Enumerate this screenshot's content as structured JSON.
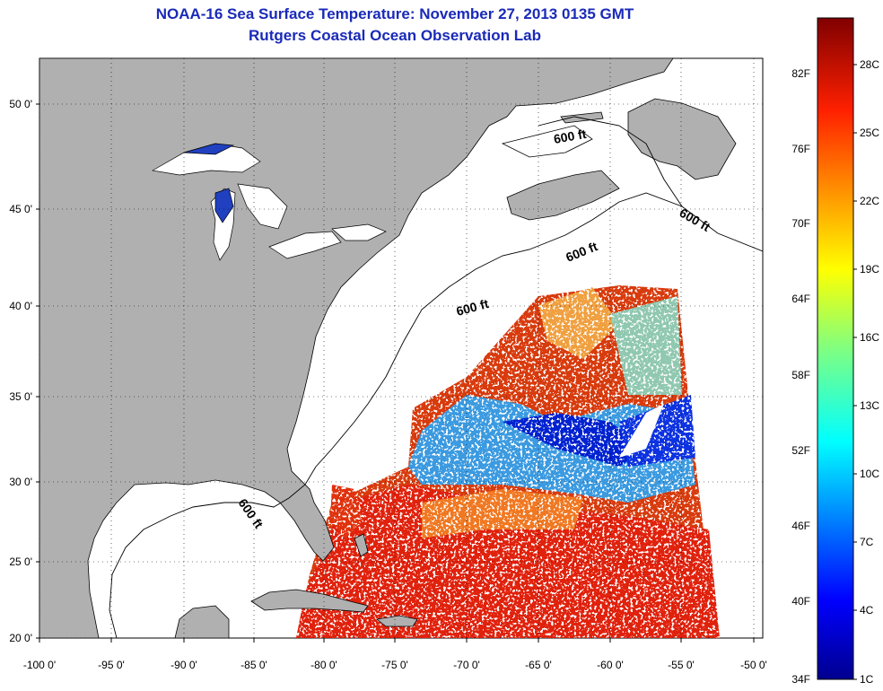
{
  "title": {
    "line1": "NOAA-16 Sea Surface Temperature:  November 27, 2013 0135 GMT",
    "line2": "Rutgers Coastal Ocean Observation Lab"
  },
  "axes": {
    "lat_labels": [
      "50 0'",
      "45 0'",
      "40 0'",
      "35 0'",
      "30 0'",
      "25 0'",
      "20 0'"
    ],
    "lon_labels": [
      "-100 0'",
      "-95 0'",
      "-90 0'",
      "-85 0'",
      "-80 0'",
      "-75 0'",
      "-70 0'",
      "-65 0'",
      "-60 0'",
      "-55 0'",
      "-50 0'"
    ]
  },
  "contour_labels": [
    "600 ft",
    "600 ft",
    "600 ft",
    "600 ft",
    "600 ft"
  ],
  "colorbar": {
    "fahrenheit": [
      "82F",
      "76F",
      "70F",
      "64F",
      "58F",
      "52F",
      "46F",
      "40F",
      "34F"
    ],
    "celsius": [
      "28C",
      "25C",
      "22C",
      "19C",
      "16C",
      "13C",
      "10C",
      "7C",
      "4C",
      "1C"
    ]
  },
  "colors": {
    "land": "#b0b0b0",
    "title": "#1a2ab8",
    "cold": "#00008f",
    "hot": "#800000"
  }
}
